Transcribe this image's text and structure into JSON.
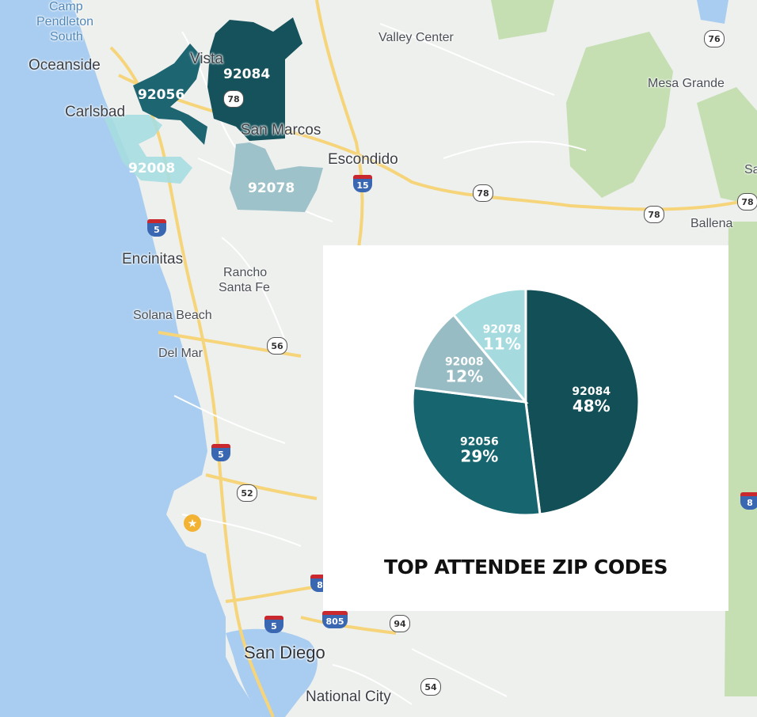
{
  "map": {
    "places": [
      {
        "id": "camp-pendleton-1",
        "text": "Camp",
        "type": "water"
      },
      {
        "id": "camp-pendleton-2",
        "text": "Pendleton",
        "type": "water"
      },
      {
        "id": "camp-pendleton-3",
        "text": "South",
        "type": "water"
      },
      {
        "id": "oceanside",
        "text": "Oceanside",
        "type": "city"
      },
      {
        "id": "vista",
        "text": "Vista",
        "type": "city"
      },
      {
        "id": "carlsbad",
        "text": "Carlsbad",
        "type": "city"
      },
      {
        "id": "san-marcos",
        "text": "San Marcos",
        "type": "city"
      },
      {
        "id": "escondido",
        "text": "Escondido",
        "type": "city"
      },
      {
        "id": "valley-center",
        "text": "Valley Center",
        "type": "small"
      },
      {
        "id": "mesa-grande",
        "text": "Mesa Grande",
        "type": "small"
      },
      {
        "id": "ballena",
        "text": "Ballena",
        "type": "small"
      },
      {
        "id": "sa",
        "text": "Sa",
        "type": "small"
      },
      {
        "id": "encinitas",
        "text": "Encinitas",
        "type": "city"
      },
      {
        "id": "rancho-1",
        "text": "Rancho",
        "type": "small"
      },
      {
        "id": "rancho-2",
        "text": "Santa Fe",
        "type": "small"
      },
      {
        "id": "solana-beach",
        "text": "Solana Beach",
        "type": "small"
      },
      {
        "id": "del-mar",
        "text": "Del Mar",
        "type": "small"
      },
      {
        "id": "san-diego",
        "text": "San Diego",
        "type": "large"
      },
      {
        "id": "national-city",
        "text": "National City",
        "type": "city"
      }
    ],
    "zip_regions": [
      {
        "zip": "92084",
        "color": "#16525b"
      },
      {
        "zip": "92056",
        "color": "#1e6572"
      },
      {
        "zip": "92008",
        "color": "#a6dde0"
      },
      {
        "zip": "92078",
        "color": "#98bfc7"
      }
    ],
    "shields": [
      {
        "id": "sr-76",
        "number": "76",
        "kind": "state"
      },
      {
        "id": "sr-78a",
        "number": "78",
        "kind": "state"
      },
      {
        "id": "sr-78b",
        "number": "78",
        "kind": "state"
      },
      {
        "id": "sr-78c",
        "number": "78",
        "kind": "state"
      },
      {
        "id": "sr-78d",
        "number": "78",
        "kind": "state"
      },
      {
        "id": "i-15",
        "number": "15",
        "kind": "interstate"
      },
      {
        "id": "i-5a",
        "number": "5",
        "kind": "interstate"
      },
      {
        "id": "sr-56",
        "number": "56",
        "kind": "state"
      },
      {
        "id": "i-5b",
        "number": "5",
        "kind": "interstate"
      },
      {
        "id": "sr-52",
        "number": "52",
        "kind": "state"
      },
      {
        "id": "i-8a",
        "number": "8",
        "kind": "interstate"
      },
      {
        "id": "i-8b",
        "number": "8",
        "kind": "interstate"
      },
      {
        "id": "i-5c",
        "number": "5",
        "kind": "interstate"
      },
      {
        "id": "i-805",
        "number": "805",
        "kind": "interstate"
      },
      {
        "id": "sr-94",
        "number": "94",
        "kind": "state"
      },
      {
        "id": "sr-54",
        "number": "54",
        "kind": "state"
      }
    ],
    "colors": {
      "water": "#a9cdf0",
      "land": "#eef0ee",
      "park": "#c5dfb2",
      "highway": "#f6d47a",
      "road": "#ffffff"
    }
  },
  "chart_data": {
    "type": "pie",
    "title": "TOP ATTENDEE ZIP CODES",
    "slices": [
      {
        "label": "92084",
        "value": 48,
        "display": "48%",
        "color": "#134f57"
      },
      {
        "label": "92056",
        "value": 29,
        "display": "29%",
        "color": "#17656f"
      },
      {
        "label": "92008",
        "value": 12,
        "display": "12%",
        "color": "#98bcc4"
      },
      {
        "label": "92078",
        "value": 11,
        "display": "11%",
        "color": "#a5dbdf"
      }
    ]
  }
}
